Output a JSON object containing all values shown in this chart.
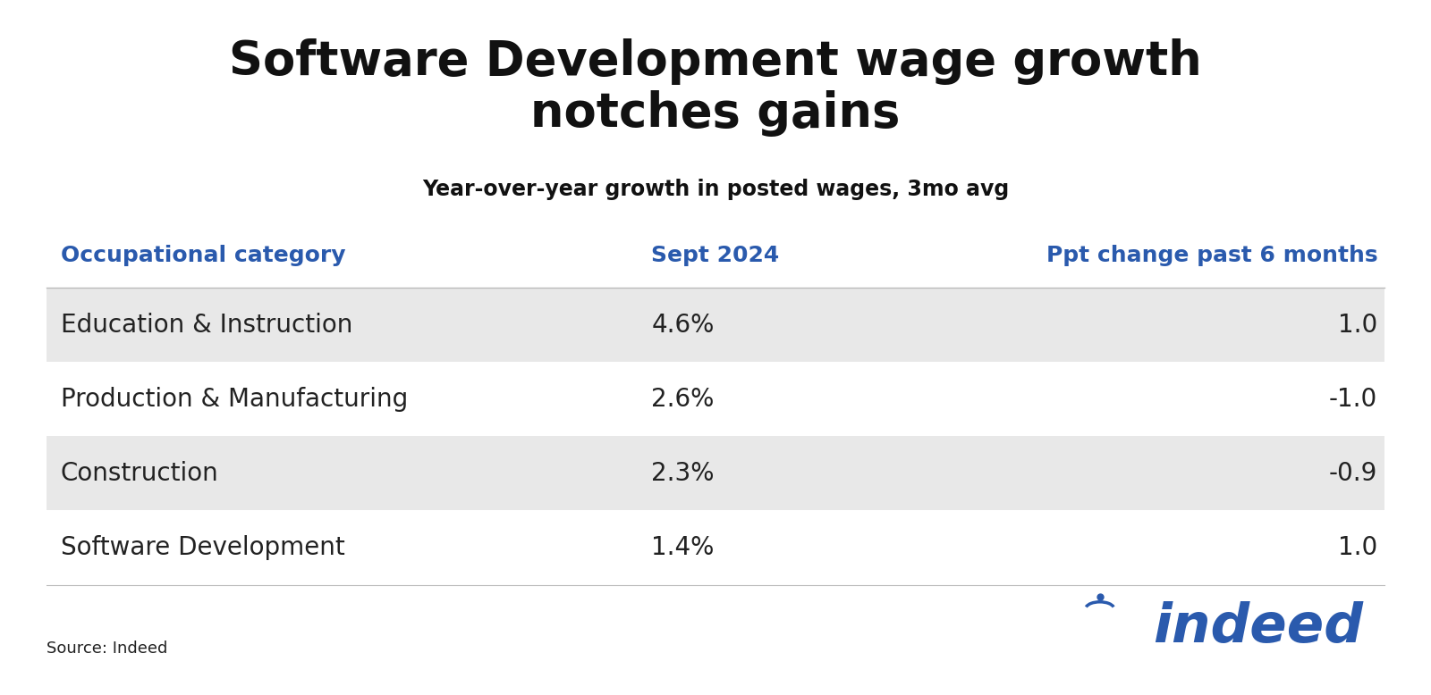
{
  "title": "Software Development wage growth\nnotches gains",
  "subtitle": "Year-over-year growth in posted wages, 3mo avg",
  "col_headers": [
    "Occupational category",
    "Sept 2024",
    "Ppt change past 6 months"
  ],
  "rows": [
    [
      "Education & Instruction",
      "4.6%",
      "1.0"
    ],
    [
      "Production & Manufacturing",
      "2.6%",
      "-1.0"
    ],
    [
      "Construction",
      "2.3%",
      "-0.9"
    ],
    [
      "Software Development",
      "1.4%",
      "1.0"
    ]
  ],
  "row_shading": [
    true,
    false,
    true,
    false
  ],
  "shading_color": "#e8e8e8",
  "white_color": "#ffffff",
  "header_color": "#2a5aad",
  "text_color": "#222222",
  "title_color": "#111111",
  "source_text": "Source: Indeed",
  "background_color": "#ffffff",
  "col_alignments": [
    "left",
    "left",
    "right"
  ],
  "title_fontsize": 38,
  "subtitle_fontsize": 17,
  "col_header_fontsize": 18,
  "row_fontsize": 20,
  "source_fontsize": 13
}
